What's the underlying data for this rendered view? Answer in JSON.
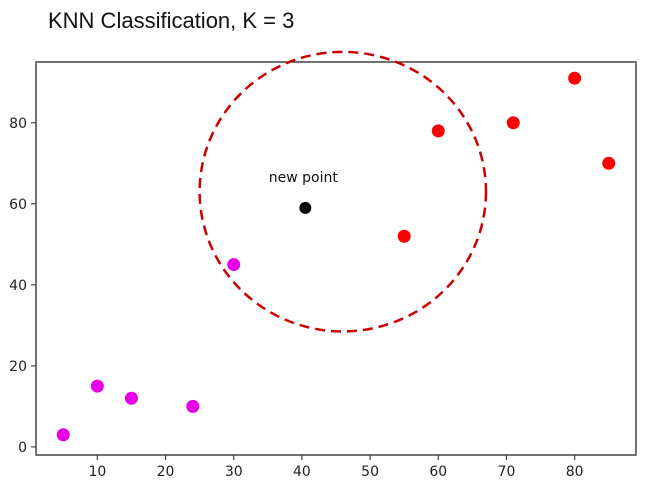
{
  "chart_data": {
    "type": "scatter",
    "title": "KNN Classification, K = 3",
    "xlabel": "",
    "ylabel": "",
    "xlim": [
      1,
      89
    ],
    "ylim": [
      -2,
      95
    ],
    "xticks": [
      10,
      20,
      30,
      40,
      50,
      60,
      70,
      80
    ],
    "yticks": [
      0,
      20,
      40,
      60,
      80
    ],
    "grid": false,
    "series": [
      {
        "color": "#e600e6",
        "x": [
          5,
          10,
          15,
          24,
          30
        ],
        "y": [
          3,
          15,
          12,
          10,
          45
        ]
      },
      {
        "color": "#ff0000",
        "x": [
          55,
          60,
          71,
          80,
          85
        ],
        "y": [
          52,
          78,
          80,
          91,
          70
        ]
      }
    ],
    "new_point": {
      "x": 40.5,
      "y": 59,
      "color": "#000000",
      "label": "new point"
    },
    "neighborhood": {
      "cx": 46,
      "cy": 63,
      "rx": 21,
      "ry": 34.5,
      "color": "#cc0000",
      "style": "dashed"
    }
  }
}
